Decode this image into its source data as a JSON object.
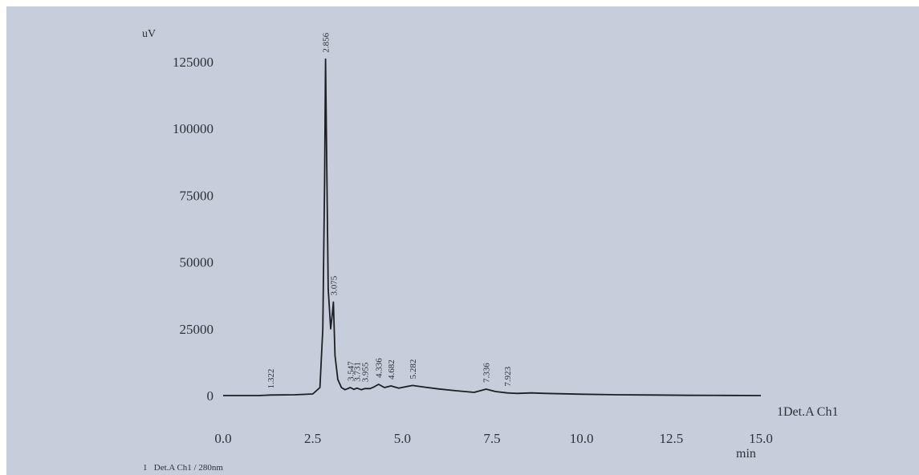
{
  "chart_data": {
    "type": "line",
    "xlabel": "min",
    "ylabel": "uV",
    "xlim": [
      0,
      15
    ],
    "ylim": [
      -2000,
      130000
    ],
    "x_ticks": [
      "0.0",
      "2.5",
      "5.0",
      "7.5",
      "10.0",
      "12.5",
      "15.0"
    ],
    "y_ticks": [
      "0",
      "25000",
      "50000",
      "75000",
      "100000",
      "125000"
    ],
    "channel_label": "1Det.A Ch1",
    "legend": "1   Det.A Ch1 / 280nm",
    "grid": false,
    "series": [
      {
        "x": [
          0.0,
          1.0,
          1.322,
          2.0,
          2.5,
          2.7,
          2.78,
          2.83,
          2.856,
          2.88,
          2.93,
          3.0,
          3.05,
          3.075,
          3.12,
          3.2,
          3.3,
          3.4,
          3.547,
          3.65,
          3.731,
          3.85,
          3.955,
          4.1,
          4.2,
          4.336,
          4.5,
          4.682,
          4.9,
          5.282,
          5.6,
          6.0,
          6.5,
          7.0,
          7.336,
          7.6,
          7.923,
          8.2,
          8.6,
          9.0,
          10.0,
          11.0,
          12.0,
          13.0,
          14.0,
          15.0
        ],
        "y": [
          0,
          0,
          200,
          300,
          600,
          3000,
          25000,
          80000,
          126000,
          100000,
          40000,
          25000,
          31000,
          35000,
          15000,
          6000,
          3000,
          2200,
          3000,
          2300,
          2800,
          2200,
          2600,
          2600,
          3200,
          4200,
          3000,
          3600,
          2800,
          3800,
          3200,
          2500,
          1800,
          1200,
          2400,
          1500,
          1000,
          800,
          1000,
          800,
          500,
          300,
          200,
          100,
          50,
          0
        ]
      }
    ],
    "peaks": [
      {
        "time": 1.322,
        "label": "1.322"
      },
      {
        "time": 2.856,
        "label": "2.856"
      },
      {
        "time": 3.075,
        "label": "3.075"
      },
      {
        "time": 3.547,
        "label": "3.547"
      },
      {
        "time": 3.731,
        "label": "3.731"
      },
      {
        "time": 3.955,
        "label": "3.955"
      },
      {
        "time": 4.336,
        "label": "4.336"
      },
      {
        "time": 4.682,
        "label": "4.682"
      },
      {
        "time": 5.282,
        "label": "5.282"
      },
      {
        "time": 7.336,
        "label": "7.336"
      },
      {
        "time": 7.923,
        "label": "7.923"
      }
    ]
  }
}
